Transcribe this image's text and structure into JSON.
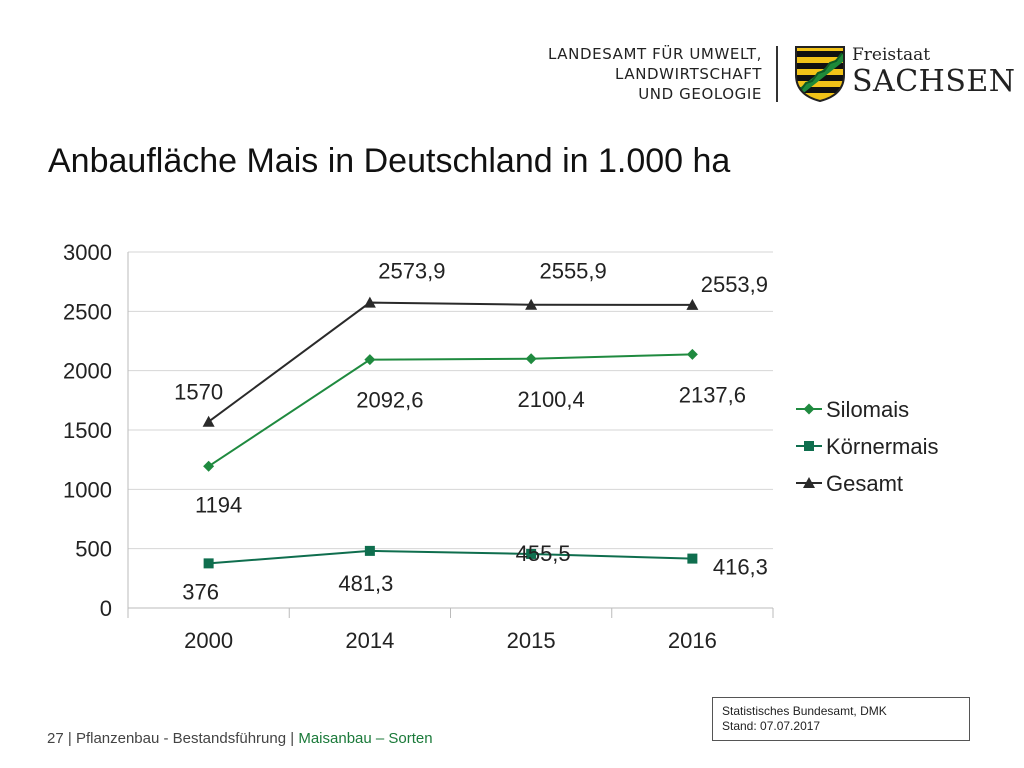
{
  "header": {
    "org_lines": [
      "LANDESAMT FÜR UMWELT,",
      "LANDWIRTSCHAFT",
      "UND GEOLOGIE"
    ],
    "state_small": "Freistaat",
    "state_big": "SACHSEN"
  },
  "colors": {
    "silomais": "#1f8a3f",
    "koernermais": "#0f6e4e",
    "gesamt": "#2a2a2a",
    "grid": "#d6d6d6",
    "footer_accent": "#1b7a3a"
  },
  "footer": {
    "page_number": "27",
    "section": "Pflanzenbau - Bestandsführung",
    "highlight": "Maisanbau – Sorten"
  },
  "source": {
    "line1": "Statistisches Bundesamt, DMK",
    "line2": "Stand: 07.07.2017"
  },
  "chart_data": {
    "type": "line",
    "title": "Anbaufläche Mais in Deutschland in 1.000 ha",
    "categories": [
      "2000",
      "2014",
      "2015",
      "2016"
    ],
    "ylim": [
      0,
      3000
    ],
    "yticks": [
      0,
      500,
      1000,
      1500,
      2000,
      2500,
      3000
    ],
    "grid": true,
    "legend_position": "right",
    "series": [
      {
        "name": "Silomais",
        "marker": "diamond",
        "color_key": "silomais",
        "values": [
          1194,
          2092.6,
          2100.4,
          2137.6
        ],
        "labels": [
          "1194",
          "2092,6",
          "2100,4",
          "2137,6"
        ]
      },
      {
        "name": "Körnermais",
        "marker": "square",
        "color_key": "koernermais",
        "values": [
          376,
          481.3,
          455.5,
          416.3
        ],
        "labels": [
          "376",
          "481,3",
          "455,5",
          "416,3"
        ]
      },
      {
        "name": "Gesamt",
        "marker": "triangle",
        "color_key": "gesamt",
        "values": [
          1570,
          2573.9,
          2555.9,
          2553.9
        ],
        "labels": [
          "1570",
          "2573,9",
          "2555,9",
          "2553,9"
        ]
      }
    ]
  }
}
